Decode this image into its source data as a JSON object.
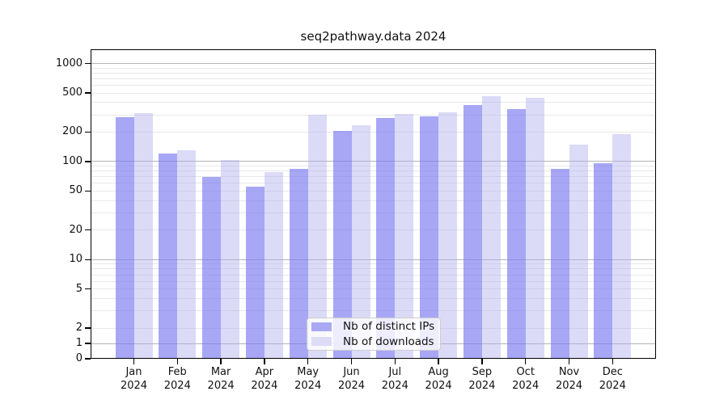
{
  "title": "seq2pathway.data 2024",
  "legend": {
    "items": [
      {
        "label": "Nb of distinct IPs",
        "color": "#a9a9f4"
      },
      {
        "label": "Nb of downloads",
        "color": "#dcdcf7"
      }
    ]
  },
  "y_axis": {
    "tick_labels": [
      "0",
      "1",
      "2",
      "5",
      "10",
      "20",
      "50",
      "100",
      "200",
      "500",
      "1000"
    ]
  },
  "x_axis": {
    "tick_labels": [
      "Jan 2024",
      "Feb 2024",
      "Mar 2024",
      "Apr 2024",
      "May 2024",
      "Jun 2024",
      "Jul 2024",
      "Aug 2024",
      "Sep 2024",
      "Oct 2024",
      "Nov 2024",
      "Dec 2024"
    ]
  },
  "chart_data": {
    "type": "bar",
    "title": "seq2pathway.data 2024",
    "categories": [
      "Jan 2024",
      "Feb 2024",
      "Mar 2024",
      "Apr 2024",
      "May 2024",
      "Jun 2024",
      "Jul 2024",
      "Aug 2024",
      "Sep 2024",
      "Oct 2024",
      "Nov 2024",
      "Dec 2024"
    ],
    "series": [
      {
        "name": "Nb of distinct IPs",
        "color": "#a9a9f4",
        "fill": "rgba(122,122,241,0.66)",
        "values": [
          285,
          120,
          70,
          55,
          84,
          205,
          278,
          290,
          375,
          340,
          84,
          96
        ]
      },
      {
        "name": "Nb of downloads",
        "color": "#dcdcf7",
        "fill": "rgba(177,177,238,0.46)",
        "values": [
          310,
          130,
          103,
          78,
          300,
          235,
          305,
          320,
          465,
          450,
          150,
          190
        ]
      }
    ],
    "yscale": "symlog",
    "yticks": [
      0,
      1,
      2,
      5,
      10,
      20,
      50,
      100,
      200,
      500,
      1000
    ],
    "ylim": [
      0,
      1400
    ],
    "grid": "horizontal, major gridlines at 1/10/100/1000, minor at 2-9 multiples",
    "gridline_major_color": "#b4b4b4",
    "gridline_minor_color": "#e8e8e8",
    "legend_position": "lower center"
  }
}
